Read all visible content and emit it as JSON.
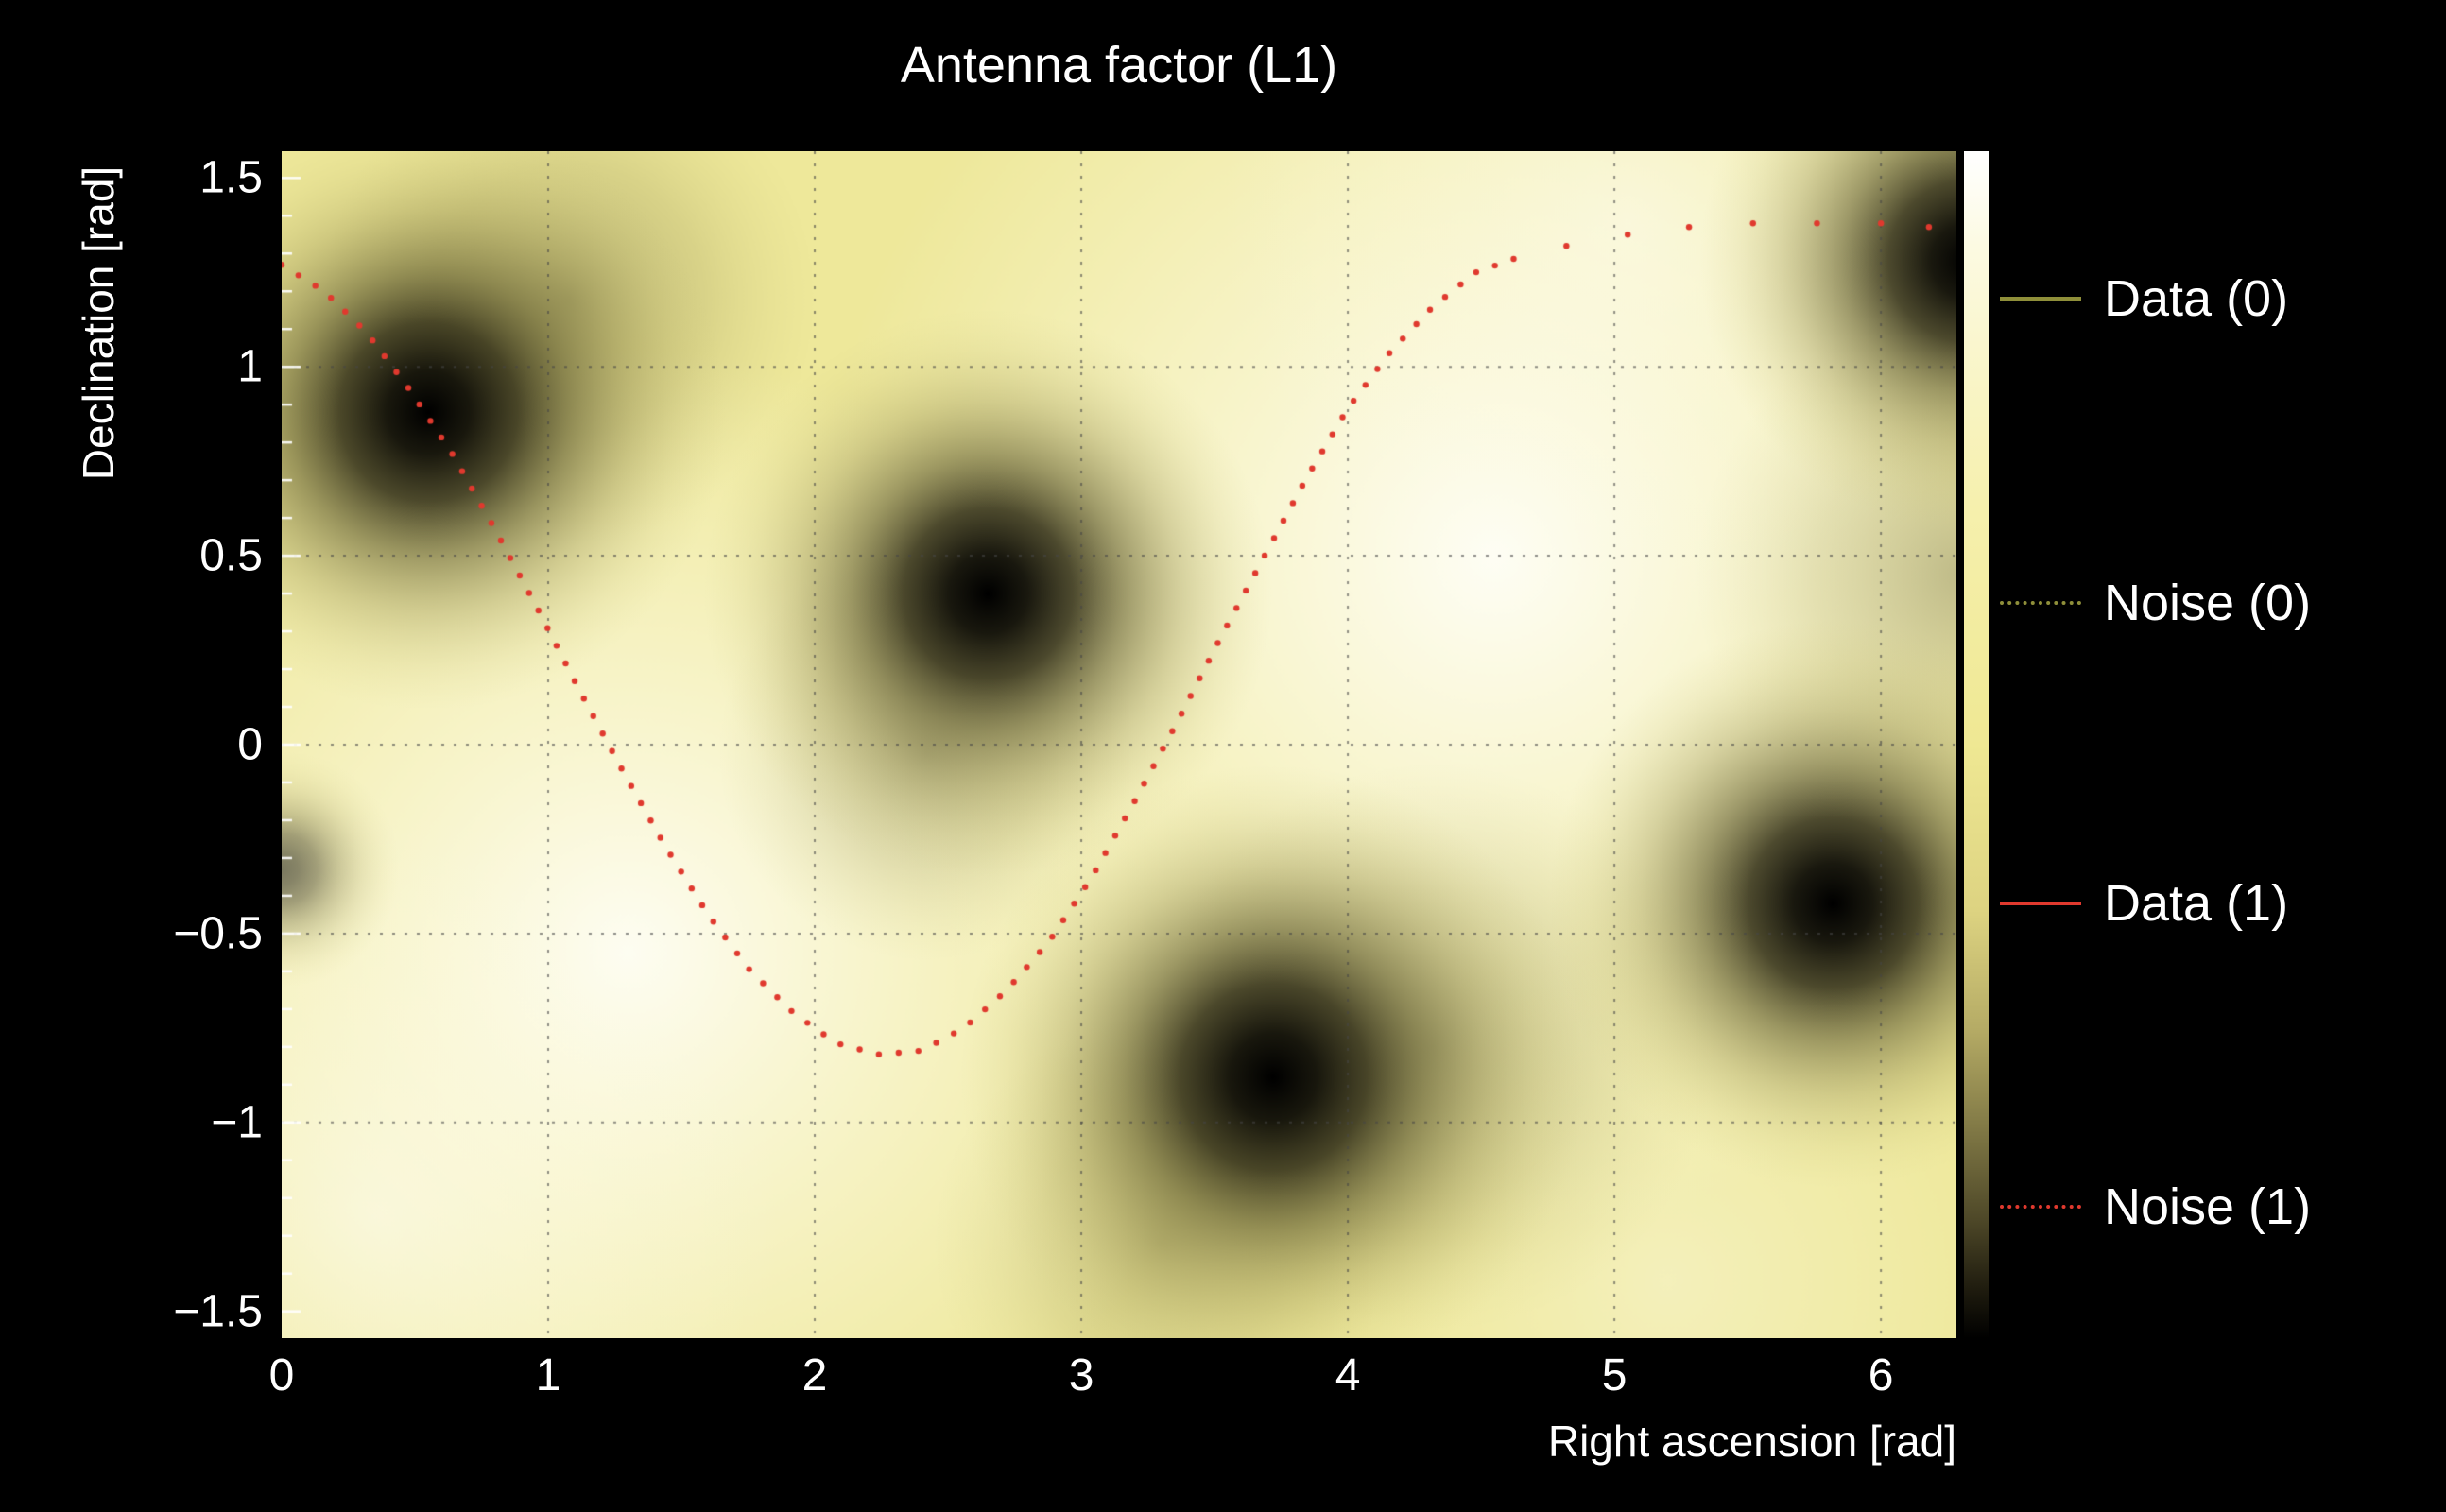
{
  "colors": {
    "background": "#000000",
    "text": "#ffffff",
    "base_field": "#eee89a",
    "grid": "#464646"
  },
  "legend": {
    "items": [
      {
        "label": "Data (0)",
        "color": "#8f8f3a",
        "line_style": "solid"
      },
      {
        "label": "Noise (0)",
        "color": "#8f8f3a",
        "line_style": "dotted"
      },
      {
        "label": "Data (1)",
        "color": "#e0392e",
        "line_style": "solid"
      },
      {
        "label": "Noise (1)",
        "color": "#e0392e",
        "line_style": "dotted"
      }
    ]
  },
  "chart_data": {
    "type": "heatmap",
    "title": "Antenna factor (L1)",
    "xlabel": "Right ascension [rad]",
    "ylabel": "Declination [rad]",
    "xlim": [
      0,
      6.2832
    ],
    "ylim": [
      -1.5708,
      1.5708
    ],
    "grid": true,
    "x_ticks": {
      "values": [
        0,
        1,
        2,
        3,
        4,
        5,
        6
      ],
      "labels": [
        "0",
        "1",
        "2",
        "3",
        "4",
        "5",
        "6"
      ]
    },
    "y_ticks": {
      "values": [
        1.5,
        1,
        0.5,
        0,
        -0.5,
        -1,
        -1.5
      ],
      "labels": [
        "1.5",
        "1",
        "0.5",
        "0",
        "−0.5",
        "−1",
        "−1.5"
      ]
    },
    "colormap": {
      "description": "bright = high antenna response, dark = antenna null",
      "stops": [
        [
          0.0,
          "#ffffff"
        ],
        [
          0.08,
          "#fcfae2"
        ],
        [
          0.3,
          "#f6f0ad"
        ],
        [
          0.5,
          "#efe893"
        ],
        [
          0.64,
          "#ddd381"
        ],
        [
          0.74,
          "#b5ab65"
        ],
        [
          0.82,
          "#837b47"
        ],
        [
          0.9,
          "#4e4828"
        ],
        [
          0.96,
          "#1e1b0e"
        ],
        [
          1.0,
          "#000000"
        ]
      ]
    },
    "nulls": [
      {
        "ra": 0.55,
        "dec": 0.88
      },
      {
        "ra": 2.65,
        "dec": 0.4
      },
      {
        "ra": 3.72,
        "dec": -0.88
      },
      {
        "ra": 5.82,
        "dec": -0.42
      },
      {
        "ra": 6.33,
        "dec": 1.28
      },
      {
        "ra": 0.0,
        "dec": -0.33
      }
    ],
    "maxima": [
      {
        "ra": 1.3,
        "dec": -0.55
      },
      {
        "ra": 4.55,
        "dec": 0.5
      }
    ],
    "noise_track": {
      "series": "Noise (1)",
      "color": "#e0392e",
      "points": [
        [
          0.0,
          1.27
        ],
        [
          0.16,
          1.2
        ],
        [
          0.32,
          1.09
        ],
        [
          0.48,
          0.94
        ],
        [
          0.64,
          0.77
        ],
        [
          0.8,
          0.57
        ],
        [
          0.96,
          0.36
        ],
        [
          1.12,
          0.14
        ],
        [
          1.28,
          -0.07
        ],
        [
          1.44,
          -0.27
        ],
        [
          1.6,
          -0.45
        ],
        [
          1.76,
          -0.6
        ],
        [
          1.92,
          -0.71
        ],
        [
          2.08,
          -0.79
        ],
        [
          2.24,
          -0.82
        ],
        [
          2.4,
          -0.81
        ],
        [
          2.56,
          -0.75
        ],
        [
          2.72,
          -0.65
        ],
        [
          2.88,
          -0.52
        ],
        [
          3.04,
          -0.35
        ],
        [
          3.2,
          -0.15
        ],
        [
          3.36,
          0.06
        ],
        [
          3.52,
          0.28
        ],
        [
          3.68,
          0.49
        ],
        [
          3.84,
          0.7
        ],
        [
          4.0,
          0.89
        ],
        [
          4.16,
          1.04
        ],
        [
          4.32,
          1.16
        ],
        [
          4.48,
          1.25
        ],
        [
          4.64,
          1.29
        ]
      ],
      "sparse_points": [
        [
          4.82,
          1.32
        ],
        [
          5.05,
          1.35
        ],
        [
          5.28,
          1.37
        ],
        [
          5.52,
          1.38
        ],
        [
          5.76,
          1.38
        ],
        [
          6.0,
          1.38
        ],
        [
          6.18,
          1.37
        ]
      ]
    }
  }
}
